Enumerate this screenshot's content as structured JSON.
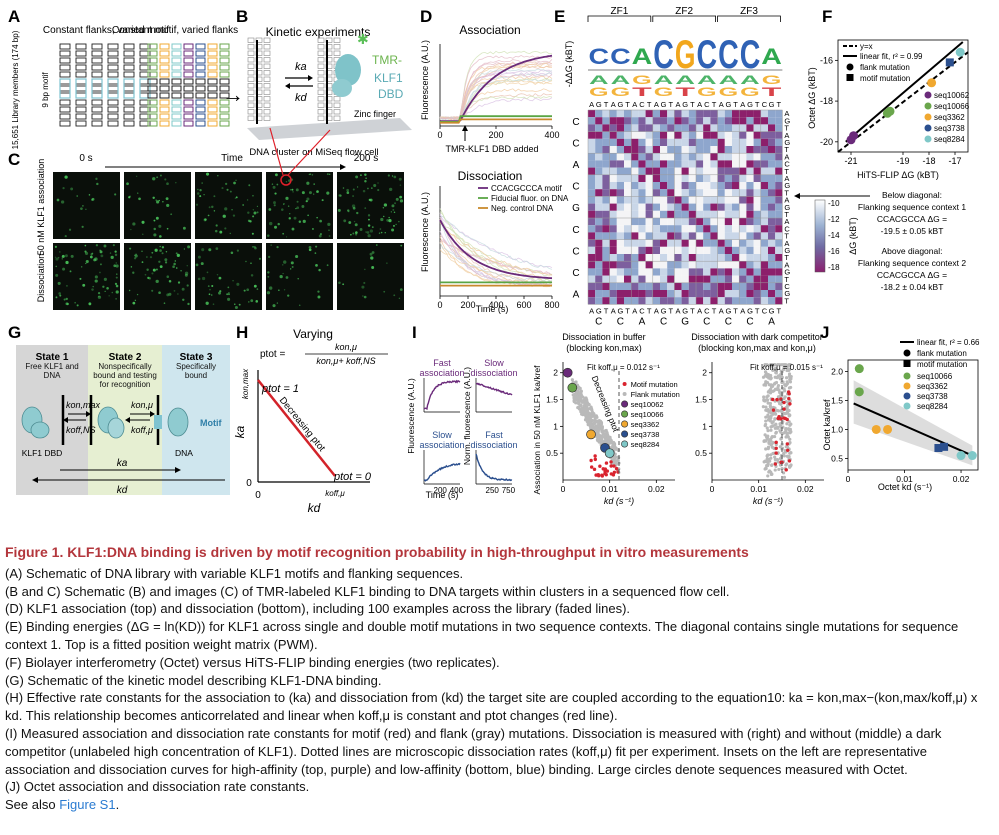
{
  "panels": {
    "A": {
      "letter": "A",
      "label_left": "Constant flanks, varied motif",
      "label_right": "Constant motif, varied flanks",
      "axis_outer": "15,651 Library members (174 bp)",
      "axis_inner": "9 bp motif"
    },
    "B": {
      "letter": "B",
      "title": "Kinetic experiments",
      "ka": "ka",
      "kd": "kd",
      "tmr1": "TMR-",
      "tmr2": "KLF1",
      "tmr3": "DBD",
      "zinc": "Zinc finger",
      "cluster": "DNA cluster on MiSeq flow cell"
    },
    "C": {
      "letter": "C",
      "t0": "0 s",
      "time": "Time",
      "t200": "200 s",
      "row1": "50 nM KLF1 association",
      "row2": "Dissociation"
    },
    "D": {
      "letter": "D",
      "assoc_title": "Association",
      "dissoc_title": "Dissociation",
      "ylabel": "Fluorescence (A.U.)",
      "xlabel": "Time (s)",
      "added": "TMR-KLF1 DBD added",
      "legend": [
        "CCACGCCCA motif",
        "Fiducial fluor. on DNA",
        "Neg. control DNA"
      ],
      "assoc_ticks_x": [
        "0",
        "200",
        "400"
      ],
      "dissoc_ticks_x": [
        "0",
        "200",
        "400",
        "600",
        "800"
      ]
    },
    "E": {
      "letter": "E",
      "zf": [
        "ZF1",
        "ZF2",
        "ZF3"
      ],
      "ylabel": "-ΔΔG (kBT)",
      "bases": [
        "A",
        "G",
        "T",
        "A",
        "G",
        "T",
        "A",
        "C",
        "T",
        "A",
        "G",
        "T",
        "A",
        "G",
        "T",
        "A",
        "C",
        "T",
        "A",
        "G",
        "T",
        "A",
        "G",
        "T",
        "C",
        "G",
        "T"
      ],
      "motif": [
        "C",
        "C",
        "A",
        "C",
        "G",
        "C",
        "C",
        "C",
        "A"
      ],
      "cbar_label": "ΔG (kBT)",
      "cbar_ticks": [
        "-10",
        "-12",
        "-14",
        "-16",
        "-18"
      ]
    },
    "F": {
      "letter": "F",
      "ylabel": "Octet ΔG (kBT)",
      "xlabel": "HiTS-FLIP ΔG (kBT)",
      "legend_lines": [
        "y=x",
        "linear fit, r² = 0.99"
      ],
      "legend_marks": [
        "flank mutation",
        "motif mutation"
      ],
      "seqs": [
        "seq10062",
        "seq10066",
        "seq3362",
        "seq3738",
        "seq8284"
      ],
      "xticks": [
        "-21",
        "-19",
        "-18",
        "-17"
      ],
      "yticks": [
        "-16",
        "-18",
        "-20"
      ],
      "below_title": "Below diagonal:",
      "below_1": "Flanking sequence context 1",
      "below_2": "CCACGCCA ΔG =",
      "below_3": "-19.5 ± 0.05 kBT",
      "above_title": "Above diagonal:",
      "above_1": "Flanking sequence context 2",
      "above_2": "CCACGCCA ΔG =",
      "above_3": "-18.2 ± 0.04 kBT"
    },
    "G": {
      "letter": "G",
      "state1": "State 1",
      "state1_desc": "Free KLF1 and DNA",
      "state2": "State 2",
      "state2_desc": "Nonspecifically bound and testing for recognition",
      "state3": "State 3",
      "state3_desc": "Specifically bound",
      "kon_max": "kon,max",
      "koff_ns": "koff,NS",
      "kon_mu": "kon,μ",
      "koff_mu": "koff,μ",
      "ka": "ka",
      "kd": "kd",
      "motif": "Motif",
      "klf": "KLF1 DBD",
      "dna": "DNA"
    },
    "H": {
      "letter": "H",
      "varying": "Varying",
      "ptot": "ptot =",
      "frac_num": "kon,μ",
      "frac_den": "kon,μ+ koff,NS",
      "ptot1": "ptot = 1",
      "ptot0": "ptot = 0",
      "ka": "ka",
      "kd": "kd",
      "kon_max": "kon,max",
      "koff_mu": "koff,μ",
      "origin": "0",
      "origin_y": "0",
      "decreasing": "Decreasing ptot"
    },
    "I": {
      "letter": "I",
      "inset_fast_assoc": "Fast association",
      "inset_slow_dissoc": "Slow dissociation",
      "inset_slow_assoc": "Slow association",
      "inset_fast_dissoc": "Fast dissociation",
      "ylabel_left": "Fluorescence (A.U.)",
      "ylabel_right": "Norm. fluorescence (A.U.)",
      "xlabel": "Time (s)",
      "inset_ticks_l": [
        "200",
        "400"
      ],
      "inset_ticks_r": [
        "250",
        "750"
      ],
      "mid_title": "Dissociation in buffer",
      "mid_sub": "(blocking kon,max)",
      "right_title": "Dissociation with dark competitor",
      "right_sub": "(blocking kon,max and kon,μ)",
      "fit_mid": "Fit koff,μ = 0.012 s⁻¹",
      "fit_right": "Fit koff,μ = 0.015 s⁻¹",
      "scatter_ylabel": "Association in 50 nM KLF1 ka/kref",
      "scatter_xlabel": "kd (s⁻¹)",
      "decreasing": "Decreasing ptot",
      "legend": [
        "Motif mutation",
        "Flank mutation",
        "seq10062",
        "seq10066",
        "seq3362",
        "seq3738",
        "seq8284"
      ],
      "yticks": [
        "2",
        "1.5",
        "1",
        "0.5"
      ],
      "xticks": [
        "0",
        "0.01",
        "0.02"
      ]
    },
    "J": {
      "letter": "J",
      "legend": [
        "linear fit, r² = 0.66",
        "flank mutation",
        "motif mutation",
        "seq10066",
        "seq3362",
        "seq3738",
        "seq8284"
      ],
      "ylabel": "Octet ka/kref",
      "xlabel": "Octet kd (s⁻¹)",
      "yticks": [
        "2.0",
        "1.5",
        "1.0",
        "0.5"
      ],
      "xticks": [
        "0",
        "0.01",
        "0.02"
      ]
    }
  },
  "colors": {
    "purple": "#6a2a7a",
    "green": "#6aa64c",
    "orange": "#f0a830",
    "blue": "#2b4f8e",
    "teal": "#7fc8c8",
    "red": "#d9232e",
    "title_red": "#b3363c"
  },
  "caption": {
    "title": "Figure 1. KLF1:DNA binding is driven by motif recognition probability in high-throughput in vitro measurements",
    "lines": [
      "(A) Schematic of DNA library with variable KLF1 motifs and flanking sequences.",
      "(B and C) Schematic (B) and images (C) of TMR-labeled KLF1 binding to DNA targets within clusters in a sequenced flow cell.",
      "(D) KLF1 association (top) and dissociation (bottom), including 100 examples across the library (faded lines).",
      "(E) Binding energies (ΔG = ln(KD)) for KLF1 across single and double motif mutations in two sequence contexts. The diagonal contains single mutations for sequence context 1. Top is a fitted position weight matrix (PWM).",
      "(F) Biolayer interferometry (Octet) versus HiTS-FLIP binding energies (two replicates).",
      "(G) Schematic of the kinetic model describing KLF1-DNA binding.",
      "(H) Effective rate constants for the association to (ka) and dissociation from (kd) the target site are coupled according to the equation10: ka = kon,max−(kon,max/koff,μ) x kd. This relationship becomes anticorrelated and linear when koff,μ is constant and ptot changes (red line).",
      "(I) Measured association and dissociation rate constants for motif (red) and flank (gray) mutations. Dissociation is measured with (right) and without (middle) a dark competitor (unlabeled high concentration of KLF1). Dotted lines are microscopic dissociation rates (koff,μ) fit per experiment. Insets on the left are representative association and dissociation curves for high-affinity (top, purple) and low-affinity (bottom, blue) binding. Large circles denote sequences measured with Octet.",
      "(J) Octet association and dissociation rate constants."
    ],
    "see_also": "See also",
    "see_link": "Figure S1",
    "see_end": "."
  }
}
